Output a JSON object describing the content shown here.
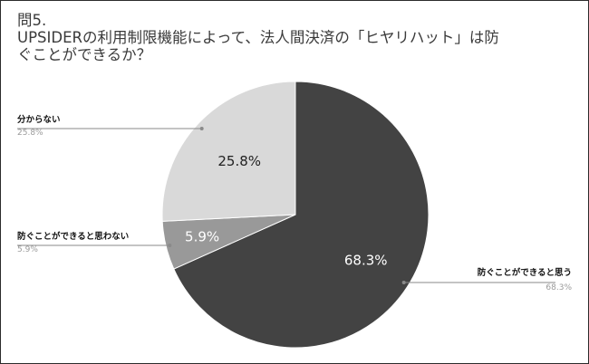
{
  "chart_data": {
    "type": "pie",
    "title_lines": [
      "問5.",
      "UPSIDERの利用制限機能によって、法人間決済の「ヒヤリハット」は防",
      "ぐことができるか？"
    ],
    "slices": [
      {
        "label": "防ぐことができると思う",
        "value": 68.3,
        "value_text": "68.3%",
        "color": "#434343"
      },
      {
        "label": "防ぐことができると思わない",
        "value": 5.9,
        "value_text": "5.9%",
        "color": "#999999"
      },
      {
        "label": "分からない",
        "value": 25.8,
        "value_text": "25.8%",
        "color": "#d9d9d9"
      }
    ],
    "start_direction": "12 o'clock",
    "direction": "clockwise",
    "legend": "outside labels with leader lines"
  }
}
